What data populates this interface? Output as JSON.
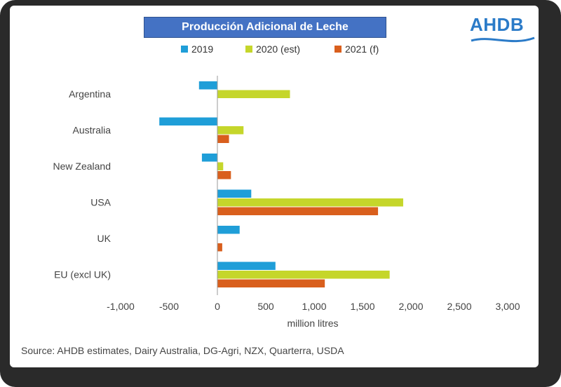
{
  "colors": {
    "frame": "#2a2a2a",
    "title_bg": "#4472c4",
    "series_2019": "#1f9ed8",
    "series_2020": "#c5d62b",
    "series_2021": "#d95f1d",
    "brand": "#2b7bc8"
  },
  "logo": {
    "text": "AHDB"
  },
  "source": "Source: AHDB estimates, Dairy Australia, DG-Agri, NZX,  Quarterra, USDA",
  "chart_data": {
    "type": "bar",
    "orientation": "horizontal",
    "title": "Producción Adicional de Leche",
    "xlabel": "million litres",
    "ylabel": "",
    "xlim": [
      -1000,
      3000
    ],
    "xticks": [
      -1000,
      -500,
      0,
      500,
      1000,
      1500,
      2000,
      2500,
      3000
    ],
    "xtick_labels": [
      "-1,000",
      "-500",
      "0",
      "500",
      "1,000",
      "1,500",
      "2,000",
      "2,500",
      "3,000"
    ],
    "categories": [
      "Argentina",
      "Australia",
      "New Zealand",
      "USA",
      "UK",
      "EU (excl UK)"
    ],
    "series": [
      {
        "name": "2019",
        "color": "#1f9ed8",
        "values": [
          -190,
          -600,
          -160,
          350,
          230,
          600
        ]
      },
      {
        "name": "2020 (est)",
        "color": "#c5d62b",
        "values": [
          750,
          270,
          60,
          1920,
          0,
          1780
        ]
      },
      {
        "name": "2021 (f)",
        "color": "#d95f1d",
        "values": [
          0,
          120,
          140,
          1660,
          50,
          1110
        ]
      }
    ],
    "legend_position": "top",
    "grid": false
  }
}
